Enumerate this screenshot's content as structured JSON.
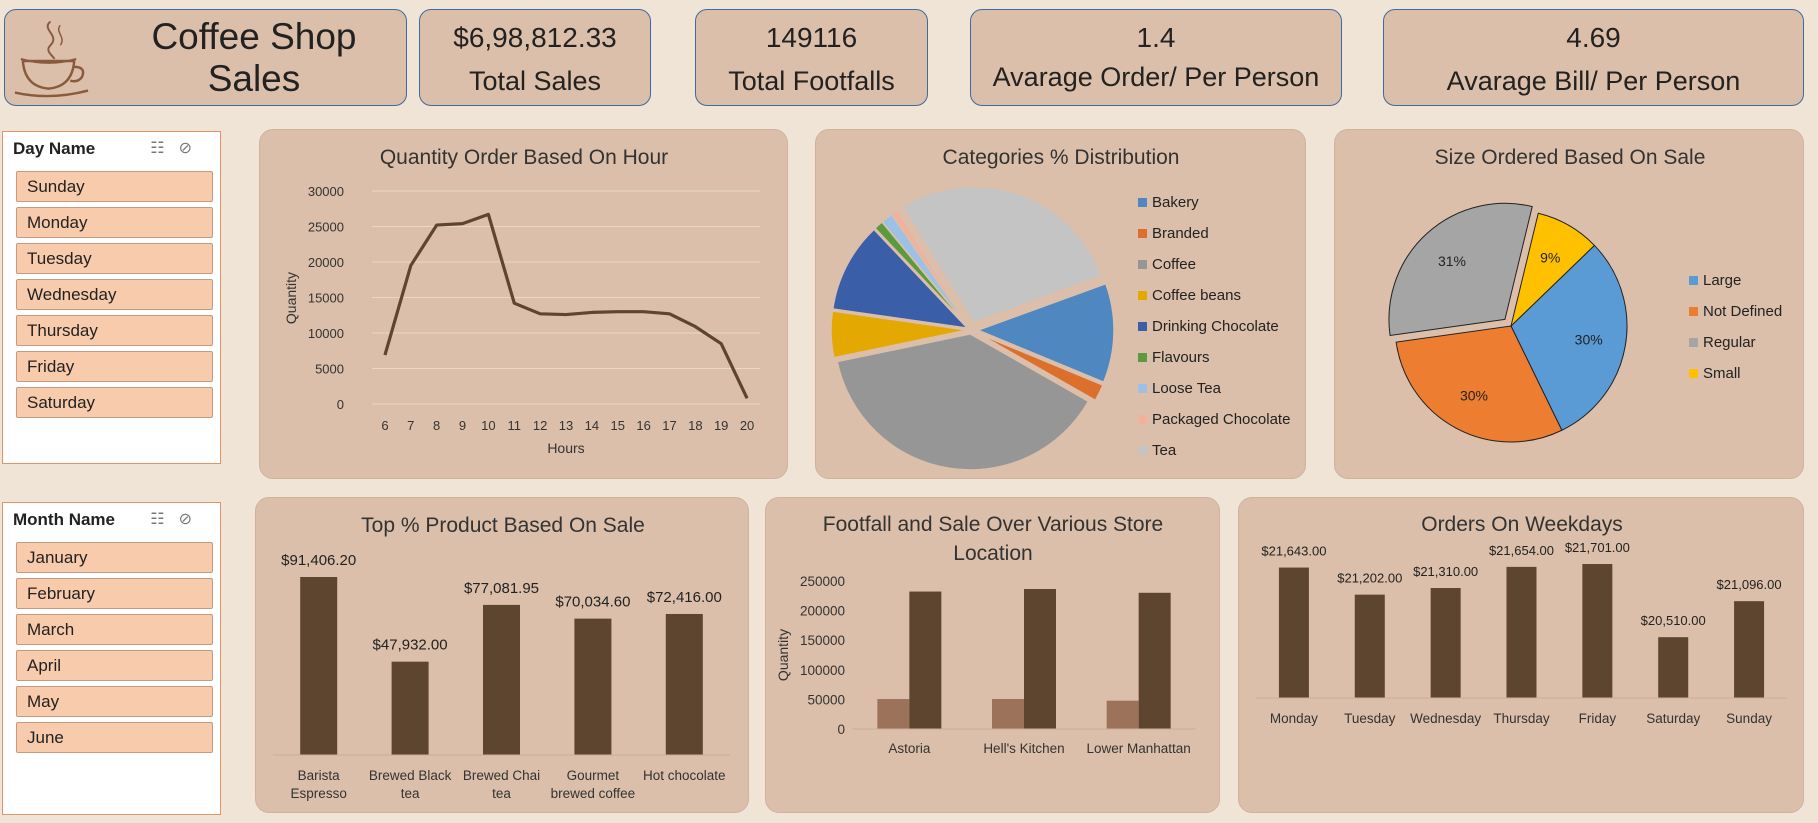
{
  "header": {
    "title": "Coffee Shop Sales"
  },
  "kpis": [
    {
      "value": "$6,98,812.33",
      "label": "Total Sales"
    },
    {
      "value": "149116",
      "label": "Total Footfalls"
    },
    {
      "value": "1.4",
      "label": "Avarage Order/ Per Person"
    },
    {
      "value": "4.69",
      "label": "Avarage Bill/ Per Person"
    }
  ],
  "day_slicer": {
    "title": "Day Name",
    "items": [
      "Sunday",
      "Monday",
      "Tuesday",
      "Wednesday",
      "Thursday",
      "Friday",
      "Saturday"
    ]
  },
  "month_slicer": {
    "title": "Month Name",
    "items": [
      "January",
      "February",
      "March",
      "April",
      "May",
      "June"
    ]
  },
  "colors": {
    "brown": "#5e4530",
    "light_brown": "#9c735a",
    "panel": "#dbbfaa"
  },
  "chart_data": [
    {
      "id": "hour",
      "type": "line",
      "title": "Quantity Order Based On Hour",
      "xlabel": "Hours",
      "ylabel": "Quantity",
      "ylim": [
        0,
        30000
      ],
      "yticks": [
        0,
        5000,
        10000,
        15000,
        20000,
        25000,
        30000
      ],
      "x": [
        6,
        7,
        8,
        9,
        10,
        11,
        12,
        13,
        14,
        15,
        16,
        17,
        18,
        19,
        20
      ],
      "values": [
        6900,
        19500,
        25200,
        25400,
        26700,
        14200,
        12700,
        12600,
        12900,
        13000,
        13000,
        12700,
        10900,
        8500,
        800
      ]
    },
    {
      "id": "categories",
      "type": "pie",
      "title": "Categories % Distribution",
      "categories": [
        "Bakery",
        "Branded",
        "Coffee",
        "Coffee beans",
        "Drinking Chocolate",
        "Flavours",
        "Loose Tea",
        "Packaged Chocolate",
        "Tea"
      ],
      "values": [
        11.8,
        2.0,
        38.5,
        5.5,
        10.7,
        1.1,
        1.4,
        0.8,
        28.2
      ],
      "colors": [
        "#4f87c0",
        "#dd6f2d",
        "#969696",
        "#e3a902",
        "#3a5fa8",
        "#5c9b3d",
        "#9cc0e6",
        "#f3b09a",
        "#c4c4c4"
      ]
    },
    {
      "id": "size",
      "type": "pie",
      "title": "Size Ordered Based On Sale",
      "categories": [
        "Large",
        "Not Defined",
        "Regular",
        "Small"
      ],
      "values": [
        30,
        30,
        31,
        9
      ],
      "labels": [
        "30%",
        "30%",
        "31%",
        "9%"
      ],
      "colors": [
        "#5b9bd5",
        "#ed7d31",
        "#a5a5a5",
        "#ffc000"
      ]
    },
    {
      "id": "products",
      "type": "bar",
      "title": "Top % Product Based On Sale",
      "categories": [
        "Barista Espresso",
        "Brewed Black tea",
        "Brewed Chai tea",
        "Gourmet brewed coffee",
        "Hot chocolate"
      ],
      "values": [
        91406.2,
        47932,
        77081.95,
        70034.6,
        72416
      ],
      "labels": [
        "$91,406.20",
        "$47,932.00",
        "$77,081.95",
        "$70,034.60",
        "$72,416.00"
      ]
    },
    {
      "id": "stores",
      "type": "bar",
      "title": "Footfall and Sale Over Various Store Location",
      "ylabel": "Quantity",
      "ylim": [
        0,
        250000
      ],
      "yticks": [
        0,
        50000,
        100000,
        150000,
        200000,
        250000
      ],
      "categories": [
        "Astoria",
        "Hell's Kitchen",
        "Lower Manhattan"
      ],
      "series": [
        {
          "name": "Footfall",
          "values": [
            50600,
            50700,
            47800
          ]
        },
        {
          "name": "Sale",
          "values": [
            232200,
            236500,
            230100
          ]
        }
      ]
    },
    {
      "id": "weekdays",
      "type": "bar",
      "title": "Orders On Weekdays",
      "categories": [
        "Monday",
        "Tuesday",
        "Wednesday",
        "Thursday",
        "Friday",
        "Saturday",
        "Sunday"
      ],
      "values": [
        21643,
        21202,
        21310,
        21654,
        21701,
        20510,
        21096
      ],
      "labels": [
        "$21,643.00",
        "$21,202.00",
        "$21,310.00",
        "$21,654.00",
        "$21,701.00",
        "$20,510.00",
        "$21,096.00"
      ]
    }
  ]
}
